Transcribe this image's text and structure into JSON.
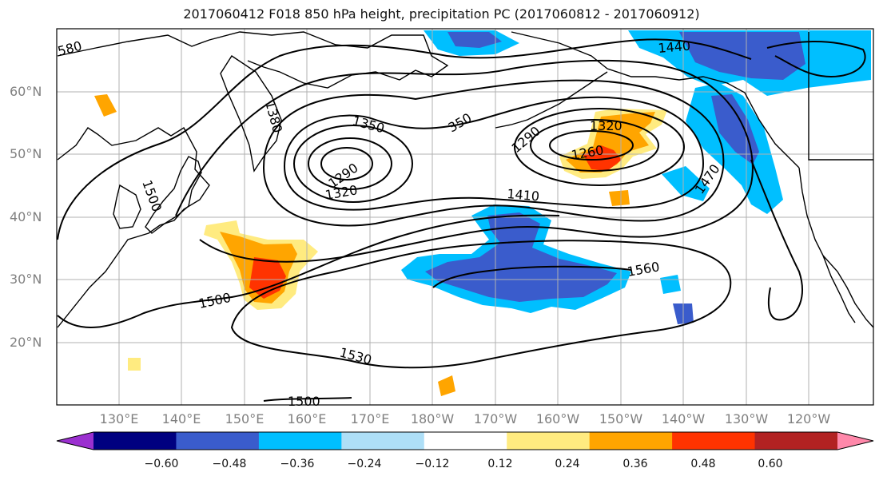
{
  "title": "2017060412 F018 850 hPa height, precipitation PC (2017060812 - 2017060912)",
  "lat_labels": [
    "60°N",
    "50°N",
    "40°N",
    "30°N",
    "20°N"
  ],
  "lon_labels": [
    "130°E",
    "140°E",
    "150°E",
    "160°E",
    "170°E",
    "180°W",
    "170°W",
    "160°W",
    "150°W",
    "140°W",
    "130°W",
    "120°W"
  ],
  "contour_labels": {
    "c1440": "1440",
    "c1350": "1350",
    "c1290a": "1290",
    "c1320a": "1320",
    "c1350b": "350",
    "c1290b": "1290",
    "c1320b": "1320",
    "c1260": "1260",
    "c1410": "1410",
    "c1470": "1470",
    "c1500a": "1500",
    "c1500b": "1500",
    "c1500c": "1500",
    "c1530": "1530",
    "c1560": "1560",
    "c1380": "1380",
    "c1580": "580"
  },
  "colorbar": {
    "ticks": [
      "−0.60",
      "−0.48",
      "−0.36",
      "−0.24",
      "−0.12",
      "0.12",
      "0.24",
      "0.36",
      "0.48",
      "0.60"
    ],
    "colors": [
      "#9b30d0",
      "#000080",
      "#3a5ccc",
      "#00bfff",
      "#aedff7",
      "#ffffff",
      "#ffeb80",
      "#ffa500",
      "#ff3300",
      "#b22222",
      "#ff88aa"
    ]
  },
  "map_colors": {
    "negative_light": "#00bfff",
    "negative_mid": "#3a5ccc",
    "negative_dark": "#000080",
    "positive_light": "#ffeb80",
    "positive_mid": "#ffa500",
    "positive_strong": "#ff3300"
  }
}
